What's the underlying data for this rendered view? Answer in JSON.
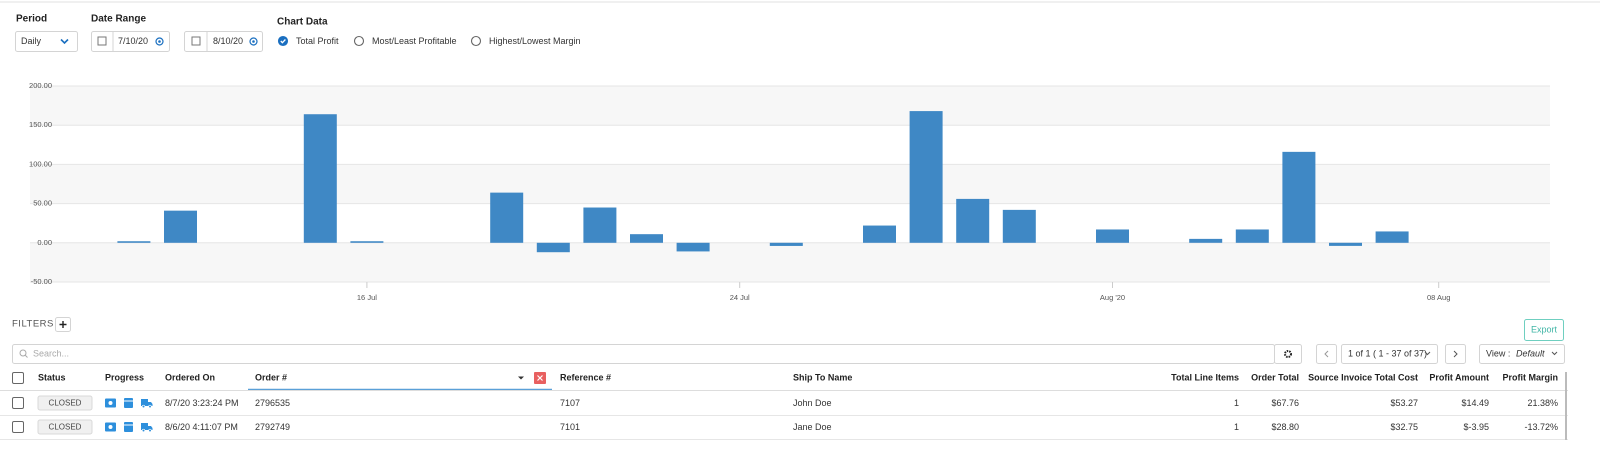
{
  "controls": {
    "period_label": "Period",
    "period_value": "Daily",
    "date_range_label": "Date Range",
    "date_from": "7/10/20",
    "date_to": "8/10/20",
    "chart_data_label": "Chart Data",
    "options": [
      "Total Profit",
      "Most/Least Profitable",
      "Highest/Lowest Margin"
    ],
    "selected_option": 0
  },
  "chart_data": {
    "type": "bar",
    "categories": [
      null,
      null,
      null,
      null,
      null,
      null,
      "16 Jul",
      null,
      null,
      null,
      null,
      null,
      null,
      null,
      "24 Jul",
      null,
      null,
      null,
      null,
      null,
      null,
      null,
      "Aug '20",
      null,
      null,
      null,
      null,
      null,
      null,
      "08 Aug",
      null,
      null
    ],
    "values": [
      0,
      2,
      41,
      0,
      0,
      164,
      2,
      0,
      0,
      64,
      -12,
      45,
      11,
      -11,
      0,
      -4,
      0,
      22,
      168,
      56,
      42,
      0,
      17,
      0,
      5,
      17,
      116,
      -3.95,
      14.49,
      0,
      0,
      0
    ],
    "color": "#3f88c5",
    "ylim": [
      -50,
      200
    ],
    "yticks": [
      {
        "value": -50,
        "label": "-50.00"
      },
      {
        "value": 0,
        "label": "0.00"
      },
      {
        "value": 50,
        "label": "50.00"
      },
      {
        "value": 100,
        "label": "100.00"
      },
      {
        "value": 150,
        "label": "150.00"
      },
      {
        "value": 200,
        "label": "200.00"
      }
    ],
    "grid": true
  },
  "filters": {
    "label": "FILTERS",
    "search_placeholder": "Search...",
    "pagination": "1 of 1 ( 1 - 37 of 37)",
    "view_label": "View :",
    "view_value": "Default",
    "export": "Export"
  },
  "table": {
    "columns": [
      "Status",
      "Progress",
      "Ordered On",
      "Order #",
      "Reference #",
      "Ship To Name",
      "Total Line Items",
      "Order Total",
      "Source Invoice Total Cost",
      "Profit Amount",
      "Profit Margin"
    ],
    "rows": [
      [
        "CLOSED",
        null,
        "8/7/20 3:23:24 PM",
        "2796535",
        "7107",
        "John Doe",
        "1",
        "$67.76",
        "$53.27",
        "$14.49",
        "21.38%"
      ],
      [
        "CLOSED",
        null,
        "8/6/20 4:11:07 PM",
        "2792749",
        "7101",
        "Jane Doe",
        "1",
        "$28.80",
        "$32.75",
        "$-3.95",
        "-13.72%"
      ]
    ]
  }
}
